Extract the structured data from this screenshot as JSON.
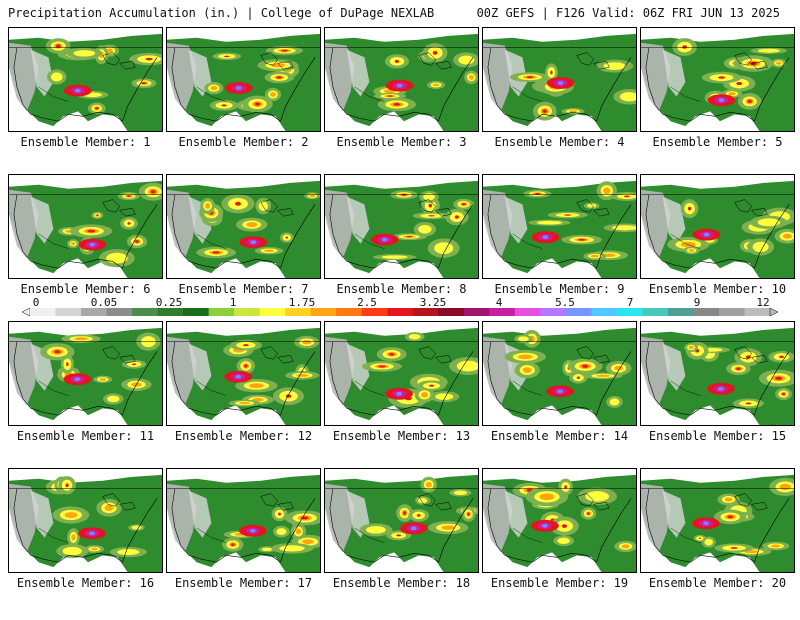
{
  "header": {
    "title_left": "Precipitation Accumulation (in.) | College of DuPage NEXLAB",
    "title_right": "00Z GEFS | F126 Valid: 06Z FRI JUN 13 2025"
  },
  "panels": [
    {
      "label": "Ensemble Member: 1"
    },
    {
      "label": "Ensemble Member: 2"
    },
    {
      "label": "Ensemble Member: 3"
    },
    {
      "label": "Ensemble Member: 4"
    },
    {
      "label": "Ensemble Member: 5"
    },
    {
      "label": "Ensemble Member: 6"
    },
    {
      "label": "Ensemble Member: 7"
    },
    {
      "label": "Ensemble Member: 8"
    },
    {
      "label": "Ensemble Member: 9"
    },
    {
      "label": "Ensemble Member: 10"
    },
    {
      "label": "Ensemble Member: 11"
    },
    {
      "label": "Ensemble Member: 12"
    },
    {
      "label": "Ensemble Member: 13"
    },
    {
      "label": "Ensemble Member: 14"
    },
    {
      "label": "Ensemble Member: 15"
    },
    {
      "label": "Ensemble Member: 16"
    },
    {
      "label": "Ensemble Member: 17"
    },
    {
      "label": "Ensemble Member: 18"
    },
    {
      "label": "Ensemble Member: 19"
    },
    {
      "label": "Ensemble Member: 20"
    }
  ],
  "legend": {
    "tick_labels": [
      "0",
      "0.05",
      "0.25",
      "1",
      "1.75",
      "2.5",
      "3.25",
      "4",
      "5.5",
      "7",
      "9",
      "12"
    ],
    "colors": [
      "#f0f0f0",
      "#d4d4d4",
      "#a8a8a8",
      "#8c8c8c",
      "#4e8c4e",
      "#2e7d2e",
      "#1a6b1a",
      "#8ccf3a",
      "#c8e63c",
      "#ffff3c",
      "#ffd21e",
      "#ffa514",
      "#ff7814",
      "#ff3c14",
      "#e6141e",
      "#b4141e",
      "#8c0a28",
      "#a0146e",
      "#c81ea0",
      "#e650dc",
      "#b478ff",
      "#7896ff",
      "#50c8ff",
      "#28e6f0",
      "#46c8be",
      "#50a096",
      "#888888",
      "#a0a0a0",
      "#bcbcbc"
    ]
  },
  "map_colors": {
    "ocean": "#ffffff",
    "land_base": "#2e8b2e",
    "dry": "#b8b8b8",
    "light": "#7fb04f",
    "yellow": "#ffff3c",
    "orange": "#ffa514",
    "red": "#e6141e",
    "magenta": "#c81ea0",
    "purple": "#7f7fff",
    "outline": "#000000"
  }
}
